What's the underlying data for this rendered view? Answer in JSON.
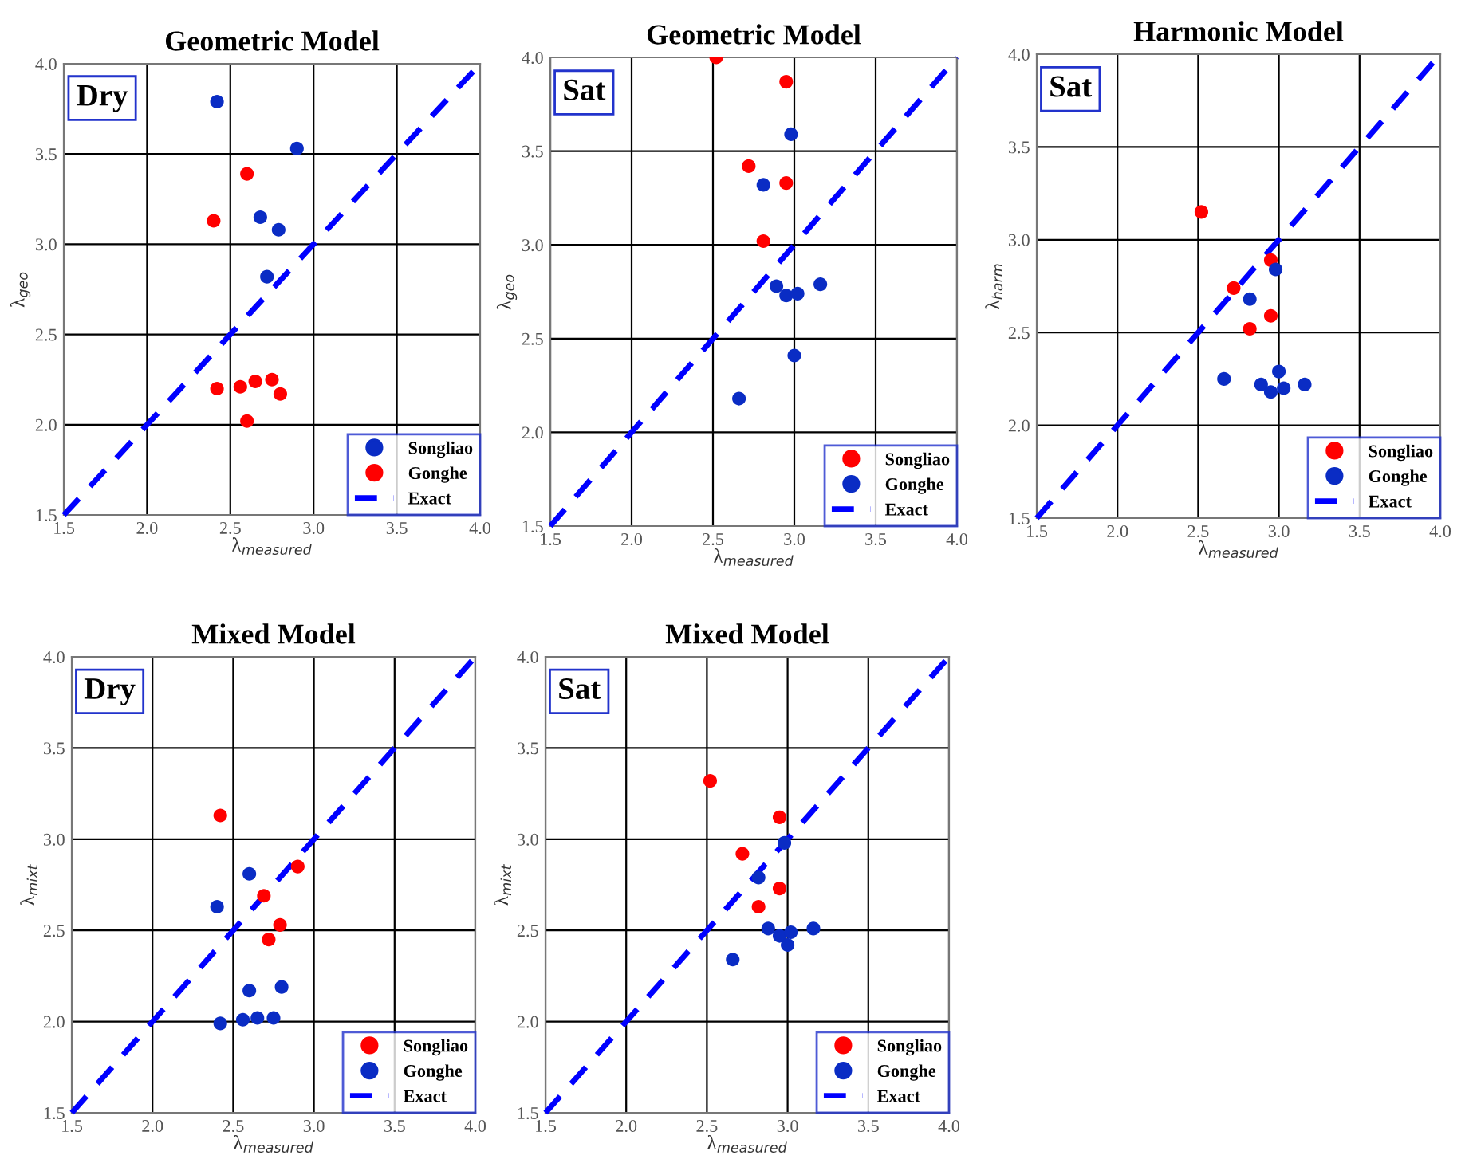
{
  "chart_data": [
    {
      "type": "scatter",
      "title": "Geometric Model",
      "xlabel": "λ$_{measured}$",
      "ylabel": "λ$_{geo}$",
      "annotations": [
        "Dry"
      ],
      "xlim": [
        1.5,
        4.0
      ],
      "ylim": [
        1.5,
        4.0
      ],
      "xticks": [
        {
          "value": 1.5,
          "label": "1.5"
        },
        {
          "value": 2,
          "label": "2.0"
        },
        {
          "value": 2.5,
          "label": "2.5"
        },
        {
          "value": 3,
          "label": "3.0"
        },
        {
          "value": 3.5,
          "label": "3.5"
        },
        {
          "value": 4,
          "label": "4.0"
        }
      ],
      "yticks": [
        {
          "value": 1.5,
          "label": "1.5"
        },
        {
          "value": 2,
          "label": "2.0"
        },
        {
          "value": 2.5,
          "label": "2.5"
        },
        {
          "value": 3,
          "label": "3.0"
        },
        {
          "value": 3.5,
          "label": "3.5"
        },
        {
          "value": 4,
          "label": "4.0"
        }
      ],
      "grid": true,
      "legend": "bottom right",
      "series": [
        {
          "name": "Songliao",
          "marker": "circle",
          "color": "#0a2cc4",
          "x": [
            2.42,
            2.9,
            2.68,
            2.79,
            2.72
          ],
          "values": [
            3.79,
            3.53,
            3.15,
            3.08,
            2.82
          ]
        },
        {
          "name": "Gonghe",
          "marker": "circle",
          "color": "#ff0000",
          "x": [
            2.6,
            2.4,
            2.42,
            2.56,
            2.65,
            2.75,
            2.8,
            2.6
          ],
          "values": [
            3.39,
            3.13,
            2.2,
            2.21,
            2.24,
            2.25,
            2.17,
            2.02
          ]
        },
        {
          "name": "Exact",
          "type": "line",
          "line_style": "dashed",
          "color": "#0000ff",
          "x": [
            1.5,
            4.0
          ],
          "values": [
            1.5,
            4.0
          ]
        }
      ]
    },
    {
      "type": "scatter",
      "title": "Geometric Model",
      "xlabel": "λ$_{measured}$",
      "ylabel": "λ$_{geo}$",
      "annotations": [
        "Sat"
      ],
      "xlim": [
        1.5,
        4.0
      ],
      "ylim": [
        1.5,
        4.0
      ],
      "xticks": [
        {
          "value": 1.5,
          "label": "1.5"
        },
        {
          "value": 2,
          "label": "2.0"
        },
        {
          "value": 2.5,
          "label": "2.5"
        },
        {
          "value": 3,
          "label": "3.0"
        },
        {
          "value": 3.5,
          "label": "3.5"
        },
        {
          "value": 4,
          "label": "4.0"
        }
      ],
      "yticks": [
        {
          "value": 1.5,
          "label": "1.5"
        },
        {
          "value": 2,
          "label": "2.0"
        },
        {
          "value": 2.5,
          "label": "2.5"
        },
        {
          "value": 3,
          "label": "3.0"
        },
        {
          "value": 3.5,
          "label": "3.5"
        },
        {
          "value": 4,
          "label": "4.0"
        }
      ],
      "grid": true,
      "legend": "bottom right",
      "series": [
        {
          "name": "Songliao",
          "marker": "circle",
          "color": "#ff0000",
          "x": [
            2.52,
            2.95,
            2.72,
            2.95,
            2.81
          ],
          "values": [
            4.0,
            3.87,
            3.42,
            3.33,
            3.02
          ]
        },
        {
          "name": "Gonghe",
          "marker": "circle",
          "color": "#0a2cc4",
          "x": [
            2.98,
            2.81,
            2.89,
            2.95,
            3.02,
            3.16,
            3.0,
            2.66
          ],
          "values": [
            3.59,
            3.32,
            2.78,
            2.73,
            2.74,
            2.79,
            2.41,
            2.18
          ]
        },
        {
          "name": "Exact",
          "type": "line",
          "line_style": "dashed",
          "color": "#0000ff",
          "x": [
            1.5,
            4.0
          ],
          "values": [
            1.5,
            4.0
          ]
        }
      ]
    },
    {
      "type": "scatter",
      "title": "Harmonic Model",
      "xlabel": "λ$_{measured}$",
      "ylabel": "λ$_{harm}$",
      "annotations": [
        "Sat"
      ],
      "xlim": [
        1.5,
        4.0
      ],
      "ylim": [
        1.5,
        4.0
      ],
      "xticks": [
        {
          "value": 1.5,
          "label": "1.5"
        },
        {
          "value": 2,
          "label": "2.0"
        },
        {
          "value": 2.5,
          "label": "2.5"
        },
        {
          "value": 3,
          "label": "3.0"
        },
        {
          "value": 3.5,
          "label": "3.5"
        },
        {
          "value": 4,
          "label": "4.0"
        }
      ],
      "yticks": [
        {
          "value": 1.5,
          "label": "1.5"
        },
        {
          "value": 2,
          "label": "2.0"
        },
        {
          "value": 2.5,
          "label": "2.5"
        },
        {
          "value": 3,
          "label": "3.0"
        },
        {
          "value": 3.5,
          "label": "3.5"
        },
        {
          "value": 4,
          "label": "4.0"
        }
      ],
      "grid": true,
      "legend": "bottom right",
      "series": [
        {
          "name": "Songliao",
          "marker": "circle",
          "color": "#ff0000",
          "x": [
            2.52,
            2.95,
            2.72,
            2.95,
            2.82
          ],
          "values": [
            3.15,
            2.89,
            2.74,
            2.59,
            2.52
          ]
        },
        {
          "name": "Gonghe",
          "marker": "circle",
          "color": "#0a2cc4",
          "x": [
            2.98,
            2.82,
            2.66,
            2.89,
            2.95,
            3.03,
            3.0,
            3.16
          ],
          "values": [
            2.84,
            2.68,
            2.25,
            2.22,
            2.18,
            2.2,
            2.29,
            2.22
          ]
        },
        {
          "name": "Exact",
          "type": "line",
          "line_style": "dashed",
          "color": "#0000ff",
          "x": [
            1.5,
            4.0
          ],
          "values": [
            1.5,
            4.0
          ]
        }
      ]
    },
    {
      "type": "scatter",
      "title": "Mixed Model",
      "xlabel": "λ$_{measured}$",
      "ylabel": "λ$_{mixt}$",
      "annotations": [
        "Dry"
      ],
      "xlim": [
        1.5,
        4.0
      ],
      "ylim": [
        1.5,
        4.0
      ],
      "xticks": [
        {
          "value": 1.5,
          "label": "1.5"
        },
        {
          "value": 2,
          "label": "2.0"
        },
        {
          "value": 2.5,
          "label": "2.5"
        },
        {
          "value": 3,
          "label": "3.0"
        },
        {
          "value": 3.5,
          "label": "3.5"
        },
        {
          "value": 4,
          "label": "4.0"
        }
      ],
      "yticks": [
        {
          "value": 1.5,
          "label": "1.5"
        },
        {
          "value": 2,
          "label": "2.0"
        },
        {
          "value": 2.5,
          "label": "2.5"
        },
        {
          "value": 3,
          "label": "3.0"
        },
        {
          "value": 3.5,
          "label": "3.5"
        },
        {
          "value": 4,
          "label": "4.0"
        }
      ],
      "grid": true,
      "legend": "bottom right",
      "series": [
        {
          "name": "Songliao",
          "marker": "circle",
          "color": "#ff0000",
          "x": [
            2.42,
            2.9,
            2.69,
            2.79,
            2.72
          ],
          "values": [
            3.13,
            2.85,
            2.69,
            2.53,
            2.45
          ]
        },
        {
          "name": "Gonghe",
          "marker": "circle",
          "color": "#0a2cc4",
          "x": [
            2.6,
            2.4,
            2.6,
            2.8,
            2.42,
            2.56,
            2.65,
            2.75
          ],
          "values": [
            2.81,
            2.63,
            2.17,
            2.19,
            1.99,
            2.01,
            2.02,
            2.02
          ]
        },
        {
          "name": "Exact",
          "type": "line",
          "line_style": "dashed",
          "color": "#0000ff",
          "x": [
            1.5,
            4.0
          ],
          "values": [
            1.5,
            4.0
          ]
        }
      ]
    },
    {
      "type": "scatter",
      "title": "Mixed Model",
      "xlabel": "λ$_{measured}$",
      "ylabel": "λ$_{mixt}$",
      "annotations": [
        "Sat"
      ],
      "xlim": [
        1.5,
        4.0
      ],
      "ylim": [
        1.5,
        4.0
      ],
      "xticks": [
        {
          "value": 1.5,
          "label": "1.5"
        },
        {
          "value": 2,
          "label": "2.0"
        },
        {
          "value": 2.5,
          "label": "2.5"
        },
        {
          "value": 3,
          "label": "3.0"
        },
        {
          "value": 3.5,
          "label": "3.5"
        },
        {
          "value": 4,
          "label": "4.0"
        }
      ],
      "yticks": [
        {
          "value": 1.5,
          "label": "1.5"
        },
        {
          "value": 2,
          "label": "2.0"
        },
        {
          "value": 2.5,
          "label": "2.5"
        },
        {
          "value": 3,
          "label": "3.0"
        },
        {
          "value": 3.5,
          "label": "3.5"
        },
        {
          "value": 4,
          "label": "4.0"
        }
      ],
      "grid": true,
      "legend": "bottom right",
      "series": [
        {
          "name": "Songliao",
          "marker": "circle",
          "color": "#ff0000",
          "x": [
            2.52,
            2.95,
            2.72,
            2.95,
            2.82
          ],
          "values": [
            3.32,
            3.12,
            2.92,
            2.73,
            2.63
          ]
        },
        {
          "name": "Gonghe",
          "marker": "circle",
          "color": "#0a2cc4",
          "x": [
            2.98,
            2.82,
            2.88,
            2.95,
            3.02,
            3.16,
            3.0,
            2.66
          ],
          "values": [
            2.98,
            2.79,
            2.51,
            2.47,
            2.49,
            2.51,
            2.42,
            2.34
          ]
        },
        {
          "name": "Exact",
          "type": "line",
          "line_style": "dashed",
          "color": "#0000ff",
          "x": [
            1.5,
            4.0
          ],
          "values": [
            1.5,
            4.0
          ]
        }
      ]
    }
  ]
}
